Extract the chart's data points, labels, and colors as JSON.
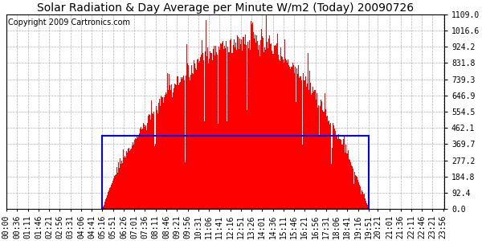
{
  "title": "Solar Radiation & Day Average per Minute W/m2 (Today) 20090726",
  "copyright": "Copyright 2009 Cartronics.com",
  "y_max": 1109.0,
  "y_ticks": [
    0.0,
    92.4,
    184.8,
    277.2,
    369.7,
    462.1,
    554.5,
    646.9,
    739.3,
    831.8,
    924.2,
    1016.6,
    1109.0
  ],
  "bar_color": "#FF0000",
  "avg_box_color": "#0000FF",
  "avg_value": 416.0,
  "sunrise_hour": 5.267,
  "sunset_hour": 19.85,
  "background_color": "#FFFFFF",
  "grid_color": "#AAAAAA",
  "title_fontsize": 10,
  "copyright_fontsize": 7,
  "tick_fontsize": 7,
  "x_tick_labels": [
    "00:00",
    "00:36",
    "01:11",
    "01:46",
    "02:21",
    "02:56",
    "03:31",
    "04:06",
    "04:41",
    "05:16",
    "05:51",
    "06:26",
    "07:01",
    "07:36",
    "08:11",
    "08:46",
    "09:21",
    "09:56",
    "10:31",
    "11:06",
    "11:41",
    "12:16",
    "12:51",
    "13:26",
    "14:01",
    "14:36",
    "15:11",
    "15:46",
    "16:21",
    "16:56",
    "17:31",
    "18:06",
    "18:41",
    "19:16",
    "19:51",
    "20:21",
    "21:01",
    "21:36",
    "22:11",
    "22:46",
    "23:21",
    "23:56"
  ]
}
